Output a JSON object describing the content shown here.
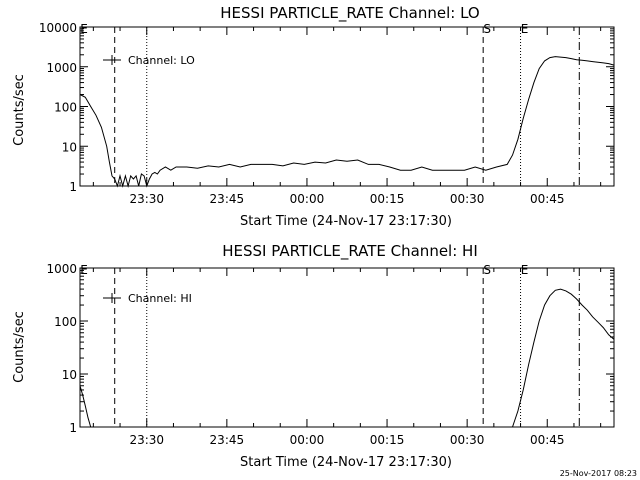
{
  "footer": {
    "timestamp": "25-Nov-2017 08:23"
  },
  "chart_data": [
    {
      "type": "line",
      "title": "HESSI PARTICLE_RATE Channel: LO",
      "xlabel": "Start Time (24-Nov-17 23:17:30)",
      "ylabel": "Counts/sec",
      "yscale": "log",
      "ylim": [
        1,
        10000
      ],
      "ytick_labels": [
        "1",
        "10",
        "100",
        "1000",
        "10000"
      ],
      "xlim_minutes_after_start": [
        0,
        100
      ],
      "xtick_labels": [
        "23:30",
        "23:45",
        "00:00",
        "00:15",
        "00:30",
        "00:45"
      ],
      "legend": {
        "label": "Channel: LO",
        "placement": "top-left"
      },
      "markers": [
        {
          "label": "E",
          "time": "23:17:30",
          "style": "none"
        },
        {
          "label": "",
          "time": "23:24",
          "style": "dashed"
        },
        {
          "label": "",
          "time": "23:30",
          "style": "dotted"
        },
        {
          "label": "S",
          "time": "00:33",
          "style": "dashed"
        },
        {
          "label": "E",
          "time": "00:40",
          "style": "dotted"
        },
        {
          "label": "",
          "time": "00:51",
          "style": "dashdot"
        }
      ],
      "series": [
        {
          "x_minutes": [
            0,
            1,
            2,
            3,
            4,
            5,
            5.5,
            6,
            6.5,
            7,
            7.5,
            8,
            8.5,
            9,
            9.5,
            10,
            10.5,
            11,
            11.5,
            12,
            12.5,
            13,
            13.5,
            14,
            14.5,
            15,
            16,
            17,
            18,
            19,
            20,
            22,
            24,
            26,
            28,
            30,
            32,
            34,
            36,
            38,
            40,
            42,
            44,
            46,
            48,
            50,
            52,
            54,
            56,
            58,
            60,
            62,
            64,
            66,
            68,
            70,
            72,
            74,
            76,
            78,
            80,
            81,
            82,
            83,
            84,
            85,
            86,
            87,
            88,
            89,
            90,
            91,
            92,
            93,
            94,
            95,
            96,
            97,
            98,
            99,
            100
          ],
          "values": [
            200,
            170,
            100,
            60,
            30,
            10,
            4,
            1.8,
            1.5,
            1,
            1.8,
            1,
            1.8,
            1,
            1.8,
            1.5,
            1.8,
            1,
            2,
            1.8,
            1,
            1.5,
            2,
            2.2,
            2,
            2.5,
            3,
            2.5,
            3,
            3,
            3,
            2.8,
            3.2,
            3,
            3.5,
            3,
            3.5,
            3.5,
            3.5,
            3.2,
            3.8,
            3.5,
            4,
            3.8,
            4.5,
            4.2,
            4.5,
            3.5,
            3.5,
            3,
            2.5,
            2.5,
            3,
            2.5,
            2.5,
            2.5,
            2.5,
            3,
            2.5,
            3,
            3.5,
            6,
            15,
            50,
            150,
            400,
            900,
            1400,
            1700,
            1800,
            1750,
            1700,
            1600,
            1500,
            1450,
            1400,
            1350,
            1300,
            1250,
            1200,
            1100
          ]
        }
      ]
    },
    {
      "type": "line",
      "title": "HESSI PARTICLE_RATE Channel: HI",
      "xlabel": "Start Time (24-Nov-17 23:17:30)",
      "ylabel": "Counts/sec",
      "yscale": "log",
      "ylim": [
        1,
        1000
      ],
      "ytick_labels": [
        "1",
        "10",
        "100",
        "1000"
      ],
      "xlim_minutes_after_start": [
        0,
        100
      ],
      "xtick_labels": [
        "23:30",
        "23:45",
        "00:00",
        "00:15",
        "00:30",
        "00:45"
      ],
      "legend": {
        "label": "Channel: HI",
        "placement": "top-left"
      },
      "markers": [
        {
          "label": "E",
          "time": "23:17:30",
          "style": "none"
        },
        {
          "label": "",
          "time": "23:24",
          "style": "dashed"
        },
        {
          "label": "",
          "time": "23:30",
          "style": "dotted"
        },
        {
          "label": "S",
          "time": "00:33",
          "style": "dashed"
        },
        {
          "label": "E",
          "time": "00:40",
          "style": "dotted"
        },
        {
          "label": "",
          "time": "00:51",
          "style": "dashdot"
        }
      ],
      "series": [
        {
          "x_minutes": [
            0,
            0.5,
            1,
            1.5,
            2,
            81,
            82,
            83,
            84,
            85,
            86,
            87,
            88,
            89,
            90,
            91,
            92,
            93,
            94,
            95,
            96,
            97,
            98,
            99,
            100
          ],
          "values": [
            6,
            4,
            2.5,
            1.5,
            1,
            1,
            2,
            5,
            15,
            40,
            100,
            200,
            300,
            380,
            400,
            370,
            320,
            260,
            200,
            160,
            120,
            95,
            75,
            55,
            45
          ]
        }
      ]
    }
  ]
}
